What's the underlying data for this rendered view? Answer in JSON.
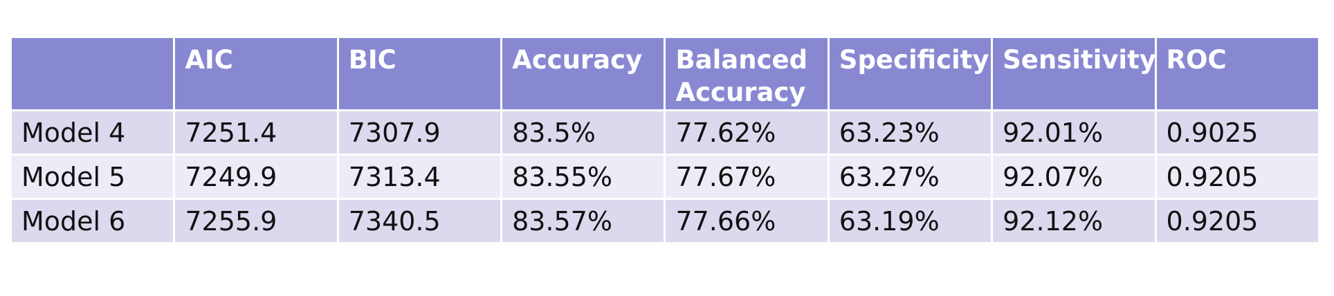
{
  "chart_data": {
    "type": "table",
    "columns": [
      "",
      "AIC",
      "BIC",
      "Accuracy",
      "Balanced Accuracy",
      "Specificity",
      "Sensitivity",
      "ROC"
    ],
    "header_lines": {
      "balanced_line1": "Balanced",
      "balanced_line2": "Accuracy"
    },
    "rows": [
      [
        "Model 4",
        "7251.4",
        "7307.9",
        "83.5%",
        "77.62%",
        "63.23%",
        "92.01%",
        "0.9025"
      ],
      [
        "Model 5",
        "7249.9",
        "7313.4",
        "83.55%",
        "77.67%",
        "63.27%",
        "92.07%",
        "0.9205"
      ],
      [
        "Model 6",
        "7255.9",
        "7340.5",
        "83.57%",
        "77.66%",
        "63.19%",
        "92.12%",
        "0.9205"
      ]
    ]
  },
  "colors": {
    "header_bg": "#8888d2",
    "row_odd_bg": "#dad9ee",
    "row_even_bg": "#ecebf6",
    "header_text": "#ffffff",
    "body_text": "#111111"
  }
}
